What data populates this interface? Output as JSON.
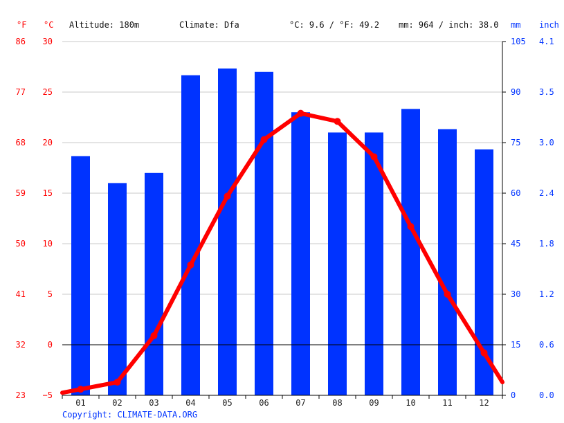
{
  "header": {
    "unit_f": "°F",
    "unit_c": "°C",
    "altitude": "Altitude: 180m",
    "climate": "Climate: Dfa",
    "temp_avg": "°C: 9.6 / °F: 49.2",
    "precip_total": "mm: 964 / inch: 38.0",
    "unit_mm": "mm",
    "unit_inch": "inch"
  },
  "copyright": "Copyright: CLIMATE-DATA.ORG",
  "colors": {
    "temperature": "#ff0000",
    "precipitation": "#0033ff",
    "grid": "#c8c8c8",
    "axis": "#000000"
  },
  "chart_data": {
    "type": "bar",
    "categories": [
      "01",
      "02",
      "03",
      "04",
      "05",
      "06",
      "07",
      "08",
      "09",
      "10",
      "11",
      "12"
    ],
    "series": [
      {
        "type": "bar",
        "axis": "right",
        "unit": "mm",
        "values": [
          71,
          63,
          66,
          95,
          97,
          96,
          84,
          78,
          78,
          85,
          79,
          73
        ]
      },
      {
        "type": "line",
        "axis": "left",
        "unit": "°C",
        "values": [
          -4.4,
          -3.7,
          0.9,
          7.9,
          14.7,
          20.3,
          22.9,
          22.1,
          18.6,
          11.7,
          5.0,
          -0.8
        ]
      }
    ],
    "y_left": {
      "label": "°C",
      "range": [
        -5,
        30
      ],
      "ticks": [
        "30",
        "25",
        "20",
        "15",
        "10",
        "5",
        "0",
        "−5"
      ]
    },
    "y_left_f": {
      "label": "°F",
      "ticks": [
        "86",
        "77",
        "68",
        "59",
        "50",
        "41",
        "32",
        "23"
      ]
    },
    "y_right": {
      "label": "mm",
      "range": [
        0,
        105
      ],
      "ticks": [
        "105",
        "90",
        "75",
        "60",
        "45",
        "30",
        "15",
        "0"
      ]
    },
    "y_right_inch": {
      "label": "inch",
      "ticks": [
        "4.1",
        "3.5",
        "3.0",
        "2.4",
        "1.8",
        "1.2",
        "0.6",
        "0.0"
      ]
    },
    "grid": true
  }
}
